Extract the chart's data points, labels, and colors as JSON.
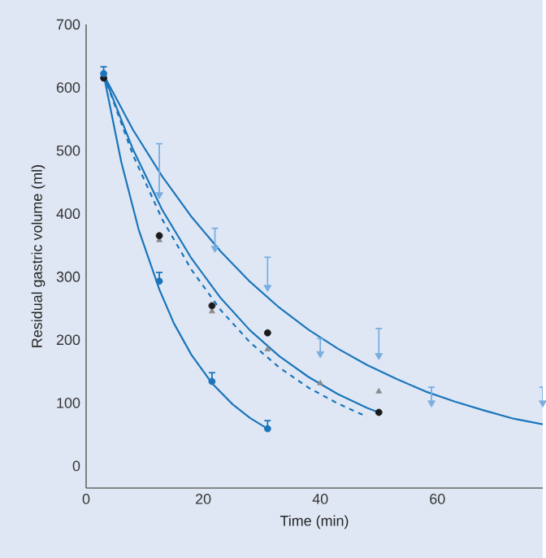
{
  "chart_data": {
    "type": "scatter",
    "xlabel": "Time (min)",
    "ylabel": "Residual gastric volume (ml)",
    "xlim": [
      0,
      78
    ],
    "ylim": [
      -35,
      700
    ],
    "xticks": [
      0,
      20,
      40,
      60
    ],
    "yticks": [
      0,
      100,
      200,
      300,
      400,
      500,
      600,
      700
    ],
    "grid": false,
    "series": [
      {
        "type": "line",
        "color": "#1a75bb",
        "marker": "none",
        "line_style": "solid",
        "x": [
          3,
          8,
          13,
          18,
          23,
          28,
          33,
          38,
          43,
          48,
          53,
          58,
          63,
          68,
          73,
          78
        ],
        "values": [
          620,
          533,
          459,
          395,
          340,
          292,
          251,
          216,
          186,
          160,
          138,
          118,
          102,
          88,
          75,
          66
        ]
      },
      {
        "type": "line",
        "color": "#1a75bb",
        "marker": "none",
        "line_style": "solid",
        "x": [
          3,
          8,
          13,
          18,
          23,
          28,
          33,
          38,
          43,
          48,
          50
        ],
        "values": [
          620,
          502,
          406,
          329,
          266,
          215,
          174,
          141,
          114,
          92,
          85
        ]
      },
      {
        "type": "line",
        "color": "#1a75bb",
        "marker": "none",
        "line_style": "dashed",
        "x": [
          3,
          8,
          13,
          18,
          23,
          28,
          33,
          38,
          43,
          48
        ],
        "values": [
          620,
          493,
          391,
          311,
          247,
          196,
          156,
          124,
          99,
          78
        ]
      },
      {
        "type": "line",
        "color": "#1a75bb",
        "marker": "none",
        "line_style": "solid",
        "x": [
          3,
          6,
          9,
          12.5,
          15,
          18,
          21.5,
          25,
          28,
          31
        ],
        "values": [
          620,
          482,
          374,
          280,
          226,
          176,
          131,
          98,
          76,
          59
        ]
      },
      {
        "color": "#7aaee0",
        "marker": "triangle",
        "x": [
          12.5,
          22,
          31,
          40,
          50,
          59,
          78
        ],
        "values": [
          430,
          345,
          283,
          178,
          175,
          100,
          100
        ],
        "errors": [
          [
            430,
            512
          ],
          [
            345,
            378
          ],
          [
            283,
            332
          ],
          [
            178,
            203
          ],
          [
            175,
            219
          ],
          [
            100,
            126
          ],
          [
            100,
            126
          ]
        ]
      },
      {
        "color": "#8c8c8c",
        "marker": "triangle",
        "x": [
          12.5,
          21.5,
          31,
          40,
          50
        ],
        "values": [
          358,
          245,
          185,
          131,
          118
        ]
      },
      {
        "color": "#1a1a1a",
        "marker": "circle",
        "x": [
          3,
          12.5,
          21.5,
          31,
          50
        ],
        "values": [
          615,
          365,
          254,
          211,
          85
        ]
      },
      {
        "color": "#1a75bb",
        "marker": "circle",
        "x": [
          3,
          12.5,
          21.5,
          31
        ],
        "values": [
          622,
          293,
          134,
          59
        ],
        "errors": [
          [
            622,
            634
          ],
          [
            293,
            308
          ],
          [
            134,
            149
          ],
          [
            59,
            73
          ]
        ]
      }
    ]
  }
}
